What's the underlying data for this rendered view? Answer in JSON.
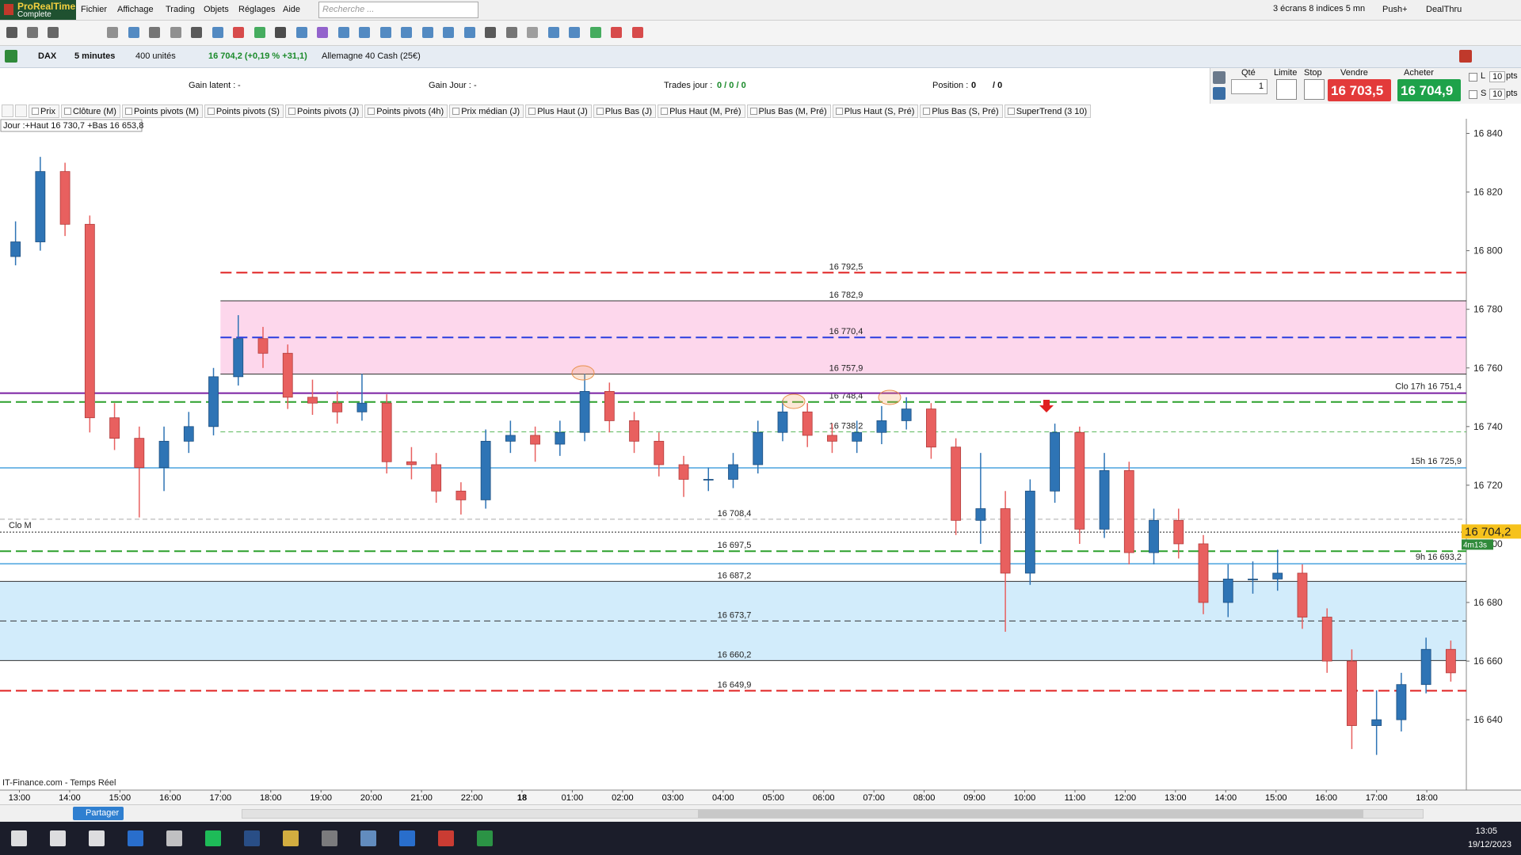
{
  "app": {
    "logo": "ProRealTime",
    "logo_sub": "Complete",
    "menu": [
      "Fichier",
      "Affichage",
      "Trading",
      "Objets",
      "Réglages",
      "Aide"
    ],
    "search_placeholder": "Recherche ...",
    "screens": "3 écrans 8 indices 5 mn",
    "push": "Push+",
    "dealthru": "DealThru"
  },
  "instrument_bar": {
    "symbol": "DAX",
    "period": "5 minutes",
    "units": "400 unités",
    "quote": "16 704,2 (+0,19 % +31,1)",
    "name": "Allemagne 40 Cash (25€)"
  },
  "trade_bar": {
    "gain_latent_label": "Gain latent :",
    "gain_latent": "-",
    "gain_jour_label": "Gain Jour :",
    "gain_jour": "-",
    "trades_label": "Trades jour :",
    "trades": "0 / 0 / 0",
    "position_label": "Position :",
    "position": "0",
    "position_total": "/ 0",
    "qty_label": "Qté",
    "qty": "1",
    "limit_label": "Limite",
    "stop_label": "Stop",
    "sell_label": "Vendre",
    "sell_price": "16 703,5",
    "buy_label": "Acheter",
    "buy_price": "16 704,9",
    "l_label": "L",
    "l_value": "10",
    "s_label": "S",
    "s_value": "10",
    "pts": "pts"
  },
  "indicator_tabs": [
    "Prix",
    "Clôture (M)",
    "Points pivots (M)",
    "Points pivots (S)",
    "Points pivots (J)",
    "Points pivots (4h)",
    "Prix médian (J)",
    "Plus Haut (J)",
    "Plus Bas (J)",
    "Plus Haut (M, Pré)",
    "Plus Bas (M, Pré)",
    "Plus Haut (S, Pré)",
    "Plus Bas (S, Pré)",
    "SuperTrend (3 10)"
  ],
  "chart_data": {
    "type": "candlestick",
    "info": "Jour :+Haut 16 730,7 +Bas 16 653,8",
    "categories": [
      "13:00",
      "14:00",
      "15:00",
      "16:00",
      "17:00",
      "18:00",
      "19:00",
      "20:00",
      "21:00",
      "22:00",
      "18",
      "01:00",
      "02:00",
      "03:00",
      "04:00",
      "05:00",
      "06:00",
      "07:00",
      "08:00",
      "09:00",
      "10:00",
      "11:00",
      "12:00",
      "13:00",
      "14:00",
      "15:00",
      "16:00",
      "17:00",
      "18:00"
    ],
    "ylim": [
      16616,
      16845
    ],
    "yticks": [
      {
        "value": 16640,
        "label": "16 640"
      },
      {
        "value": 16660,
        "label": "16 660"
      },
      {
        "value": 16680,
        "label": "16 680"
      },
      {
        "value": 16700,
        "label": "16 700"
      },
      {
        "value": 16720,
        "label": "16 720"
      },
      {
        "value": 16740,
        "label": "16 740"
      },
      {
        "value": 16760,
        "label": "16 760"
      },
      {
        "value": 16780,
        "label": "16 780"
      },
      {
        "value": 16800,
        "label": "16 800"
      },
      {
        "value": 16820,
        "label": "16 820"
      },
      {
        "value": 16840,
        "label": "16 840"
      }
    ],
    "up_color": "#2e74b5",
    "down_color": "#e8605f",
    "open": [
      16798,
      16803,
      16827,
      16809,
      16743,
      16736,
      16726,
      16735,
      16740,
      16757,
      16770,
      16765,
      16750,
      16748,
      16745,
      16748,
      16728,
      16727,
      16718,
      16715,
      16735,
      16737,
      16734,
      16738,
      16752,
      16742,
      16735,
      16727,
      16722,
      16722,
      16727,
      16738,
      16745,
      16737,
      16735,
      16738,
      16742,
      16746,
      16733,
      16708,
      16712,
      16690,
      16718,
      16738,
      16705,
      16725,
      16697,
      16708,
      16700,
      16680,
      16688,
      16688,
      16690,
      16675,
      16660,
      16638,
      16640,
      16652,
      16664
    ],
    "high": [
      16810,
      16832,
      16830,
      16812,
      16748,
      16740,
      16740,
      16745,
      16760,
      16778,
      16774,
      16768,
      16756,
      16752,
      16758,
      16751,
      16733,
      16731,
      16721,
      16739,
      16742,
      16740,
      16742,
      16758,
      16755,
      16745,
      16738,
      16730,
      16726,
      16731,
      16742,
      16749,
      16748,
      16741,
      16742,
      16747,
      16750,
      16748,
      16736,
      16731,
      16718,
      16722,
      16741,
      16740,
      16731,
      16728,
      16712,
      16712,
      16703,
      16693,
      16694,
      16698,
      16693,
      16678,
      16664,
      16650,
      16656,
      16668,
      16667
    ],
    "low": [
      16795,
      16800,
      16805,
      16738,
      16732,
      16709,
      16718,
      16731,
      16737,
      16754,
      16760,
      16746,
      16744,
      16741,
      16742,
      16724,
      16722,
      16714,
      16710,
      16712,
      16731,
      16728,
      16730,
      16735,
      16738,
      16731,
      16723,
      16716,
      16718,
      16719,
      16724,
      16735,
      16733,
      16731,
      16731,
      16734,
      16739,
      16729,
      16703,
      16700,
      16670,
      16686,
      16714,
      16700,
      16702,
      16693,
      16693,
      16695,
      16676,
      16675,
      16683,
      16684,
      16671,
      16656,
      16630,
      16628,
      16636,
      16649,
      16653
    ],
    "close": [
      16803,
      16827,
      16809,
      16743,
      16736,
      16726,
      16735,
      16740,
      16757,
      16770,
      16765,
      16750,
      16748,
      16745,
      16748,
      16728,
      16727,
      16718,
      16715,
      16735,
      16737,
      16734,
      16738,
      16752,
      16742,
      16735,
      16727,
      16722,
      16722,
      16727,
      16738,
      16745,
      16737,
      16735,
      16738,
      16742,
      16746,
      16733,
      16708,
      16712,
      16690,
      16718,
      16738,
      16705,
      16725,
      16697,
      16708,
      16700,
      16680,
      16688,
      16688,
      16690,
      16675,
      16660,
      16638,
      16640,
      16652,
      16664,
      16656
    ],
    "session_levels": [
      {
        "value": 16792.5,
        "label": "16 792,5",
        "color": "#e02020",
        "style": "dashed"
      },
      {
        "value": 16782.9,
        "label": "16 782,9",
        "color": "#333333",
        "style": "solid"
      },
      {
        "value": 16770.4,
        "label": "16 770,4",
        "color": "#2a3de0",
        "style": "dashed"
      },
      {
        "value": 16757.9,
        "label": "16 757,9",
        "color": "#333333",
        "style": "solid"
      },
      {
        "value": 16738.2,
        "label": "16 738,2",
        "color": "#5cb85c",
        "style": "fine"
      }
    ],
    "levels": [
      {
        "value": 16748.4,
        "label": "16 748,4",
        "color": "#2ca02c",
        "style": "dashed"
      },
      {
        "value": 16708.4,
        "label": "16 708,4",
        "color": "#aaaaaa",
        "style": "fine"
      },
      {
        "value": 16697.5,
        "label": "16 697,5",
        "color": "#2ca02c",
        "style": "dashed"
      },
      {
        "value": 16687.2,
        "label": "16 687,2",
        "color": "#333333",
        "style": "solid"
      },
      {
        "value": 16673.7,
        "label": "16 673,7",
        "color": "#333333",
        "style": "thin-dashed"
      },
      {
        "value": 16660.2,
        "label": "16 660,2",
        "color": "#333333",
        "style": "solid"
      },
      {
        "value": 16649.9,
        "label": "16 649,9",
        "color": "#e02020",
        "style": "dashed"
      }
    ],
    "side_levels": [
      {
        "value": 16751.4,
        "label": "Clo 17h 16 751,4",
        "color": "#7a1fa2"
      },
      {
        "value": 16725.9,
        "label": "15h 16 725,9",
        "color": "#4aa3df"
      },
      {
        "value": 16693.2,
        "label": "9h 16 693,2",
        "color": "#4aa3df"
      }
    ],
    "clo_m": {
      "value": 16704,
      "label": "Clo M"
    },
    "last_price": {
      "value": 16704.2,
      "label": "16 704,2"
    },
    "countdown": "4m13s",
    "source": "IT-Finance.com - Temps Réel"
  },
  "footer": {
    "share": "Partager"
  },
  "taskbar": {
    "time": "13:05",
    "date": "19/12/2023"
  }
}
